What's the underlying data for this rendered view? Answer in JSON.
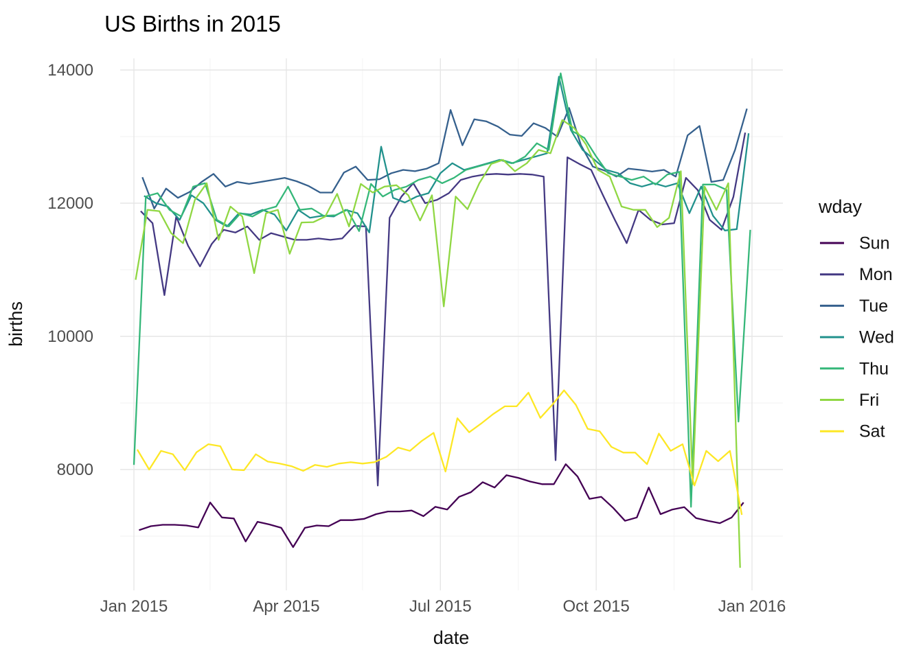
{
  "title": "US Births in 2015",
  "axes": {
    "x_label": "date",
    "y_label": "births"
  },
  "legend": {
    "title": "wday",
    "entries": [
      {
        "label": "Sun",
        "color": "#440154"
      },
      {
        "label": "Mon",
        "color": "#443983"
      },
      {
        "label": "Tue",
        "color": "#35608D"
      },
      {
        "label": "Wed",
        "color": "#21918C"
      },
      {
        "label": "Thu",
        "color": "#35B779"
      },
      {
        "label": "Fri",
        "color": "#90D743"
      },
      {
        "label": "Sat",
        "color": "#FDE725"
      }
    ]
  },
  "chart_data": {
    "type": "line",
    "title": "US Births in 2015",
    "xlabel": "date",
    "ylabel": "births",
    "legend_title": "wday",
    "legend_position": "right",
    "grid": true,
    "background": "#FFFFFF",
    "major_grid_color": "#E6E6E6",
    "minor_grid_color": "#F2F2F2",
    "x_domain": [
      "2015-01-01",
      "2016-01-01"
    ],
    "x_ticks": [
      {
        "date": "2015-01-01",
        "label": "Jan 2015"
      },
      {
        "date": "2015-04-01",
        "label": "Apr 2015"
      },
      {
        "date": "2015-07-01",
        "label": "Jul 2015"
      },
      {
        "date": "2015-10-01",
        "label": "Oct 2015"
      },
      {
        "date": "2016-01-01",
        "label": "Jan 2016"
      }
    ],
    "x_minor": [
      "2015-02-15",
      "2015-05-16",
      "2015-08-16",
      "2015-11-16"
    ],
    "y_ticks": [
      {
        "value": 8000,
        "label": "8000"
      },
      {
        "value": 10000,
        "label": "10000"
      },
      {
        "value": 12000,
        "label": "12000"
      },
      {
        "value": 14000,
        "label": "14000"
      }
    ],
    "y_minor": [
      7000,
      9000,
      11000,
      13000
    ],
    "ylim": [
      6200,
      14180
    ],
    "series": [
      {
        "name": "Sun",
        "color": "#440154",
        "start_date": "2015-01-04",
        "interval_days": 7,
        "values": [
          7090,
          7150,
          7170,
          7170,
          7160,
          7130,
          7505,
          7280,
          7265,
          6920,
          7215,
          7175,
          7125,
          6835,
          7125,
          7160,
          7150,
          7240,
          7240,
          7260,
          7330,
          7370,
          7370,
          7385,
          7300,
          7440,
          7400,
          7590,
          7660,
          7810,
          7730,
          7915,
          7875,
          7820,
          7780,
          7780,
          8080,
          7895,
          7560,
          7590,
          7425,
          7230,
          7280,
          7730,
          7330,
          7400,
          7435,
          7270,
          7230,
          7195,
          7280,
          7505
        ]
      },
      {
        "name": "Mon",
        "color": "#443983",
        "start_date": "2015-01-05",
        "interval_days": 7,
        "values": [
          11880,
          11700,
          10620,
          11800,
          11360,
          11050,
          11390,
          11600,
          11560,
          11650,
          11450,
          11550,
          11500,
          11450,
          11450,
          11470,
          11450,
          11470,
          11660,
          11650,
          7760,
          11780,
          12100,
          12300,
          12000,
          12050,
          12150,
          12350,
          12400,
          12430,
          12440,
          12430,
          12440,
          12430,
          12400,
          8140,
          12690,
          12590,
          12500,
          12120,
          11750,
          11400,
          11900,
          11750,
          11680,
          11700,
          12380,
          12195,
          11750,
          11600,
          12095,
          13060
        ]
      },
      {
        "name": "Tue",
        "color": "#35608D",
        "start_date": "2015-01-06",
        "interval_days": 7,
        "values": [
          12390,
          11920,
          12220,
          12080,
          12170,
          12320,
          12440,
          12250,
          12320,
          12290,
          12320,
          12350,
          12380,
          12330,
          12260,
          12160,
          12160,
          12460,
          12550,
          12350,
          12360,
          12450,
          12500,
          12480,
          12520,
          12600,
          13400,
          12870,
          13260,
          13230,
          13150,
          13030,
          13010,
          13200,
          13130,
          13000,
          13430,
          12870,
          12550,
          12490,
          12400,
          12520,
          12500,
          12475,
          12500,
          12400,
          13020,
          13160,
          12320,
          12350,
          12800,
          13420
        ]
      },
      {
        "name": "Wed",
        "color": "#21918C",
        "start_date": "2015-01-07",
        "interval_days": 7,
        "values": [
          12110,
          12000,
          11950,
          11750,
          12120,
          12000,
          11750,
          11650,
          11850,
          11830,
          11900,
          11830,
          11590,
          11900,
          11780,
          11810,
          11800,
          11900,
          11850,
          11560,
          12850,
          12080,
          12010,
          12100,
          12150,
          12450,
          12600,
          12500,
          12550,
          12600,
          12650,
          12600,
          12650,
          12700,
          12750,
          13900,
          13100,
          12800,
          12650,
          12500,
          12450,
          12300,
          12250,
          12300,
          12250,
          12300,
          11850,
          12250,
          11810,
          11590,
          11610,
          13050
        ]
      },
      {
        "name": "Thu",
        "color": "#35B779",
        "start_date": "2015-01-01",
        "interval_days": 7,
        "values": [
          8070,
          12100,
          12150,
          11900,
          11800,
          12250,
          12300,
          11750,
          11650,
          11850,
          11800,
          11900,
          11950,
          12250,
          11900,
          11920,
          11810,
          11820,
          11900,
          11580,
          12290,
          12100,
          12200,
          12250,
          12350,
          12400,
          12300,
          12380,
          12500,
          12550,
          12600,
          12650,
          12600,
          12700,
          12900,
          12800,
          13950,
          13080,
          12980,
          12700,
          12450,
          12400,
          12350,
          12400,
          12280,
          12430,
          12470,
          7440,
          12280,
          12280,
          12200,
          8720,
          11600
        ]
      },
      {
        "name": "Fri",
        "color": "#90D743",
        "start_date": "2015-01-02",
        "interval_days": 7,
        "values": [
          10850,
          11900,
          11880,
          11550,
          11400,
          12050,
          12300,
          11450,
          11950,
          11800,
          10950,
          11850,
          11900,
          11240,
          11710,
          11715,
          11800,
          12140,
          11650,
          12290,
          12160,
          12250,
          12270,
          12120,
          11740,
          12120,
          10450,
          12100,
          11910,
          12300,
          12590,
          12650,
          12480,
          12600,
          12800,
          12750,
          13250,
          13130,
          12880,
          12500,
          12400,
          11950,
          11900,
          11900,
          11640,
          11780,
          12480,
          7780,
          12250,
          11900,
          12300,
          6525
        ]
      },
      {
        "name": "Sat",
        "color": "#FDE725",
        "start_date": "2015-01-03",
        "interval_days": 7,
        "values": [
          8300,
          8000,
          8280,
          8230,
          7990,
          8260,
          8380,
          8350,
          8000,
          7990,
          8230,
          8120,
          8090,
          8050,
          7980,
          8070,
          8040,
          8090,
          8110,
          8090,
          8110,
          8190,
          8330,
          8280,
          8430,
          8550,
          7970,
          8770,
          8560,
          8690,
          8830,
          8950,
          8950,
          9155,
          8775,
          8970,
          9190,
          8970,
          8610,
          8575,
          8340,
          8255,
          8255,
          8080,
          8540,
          8280,
          8380,
          7760,
          8280,
          8125,
          8280,
          7320
        ]
      }
    ]
  }
}
